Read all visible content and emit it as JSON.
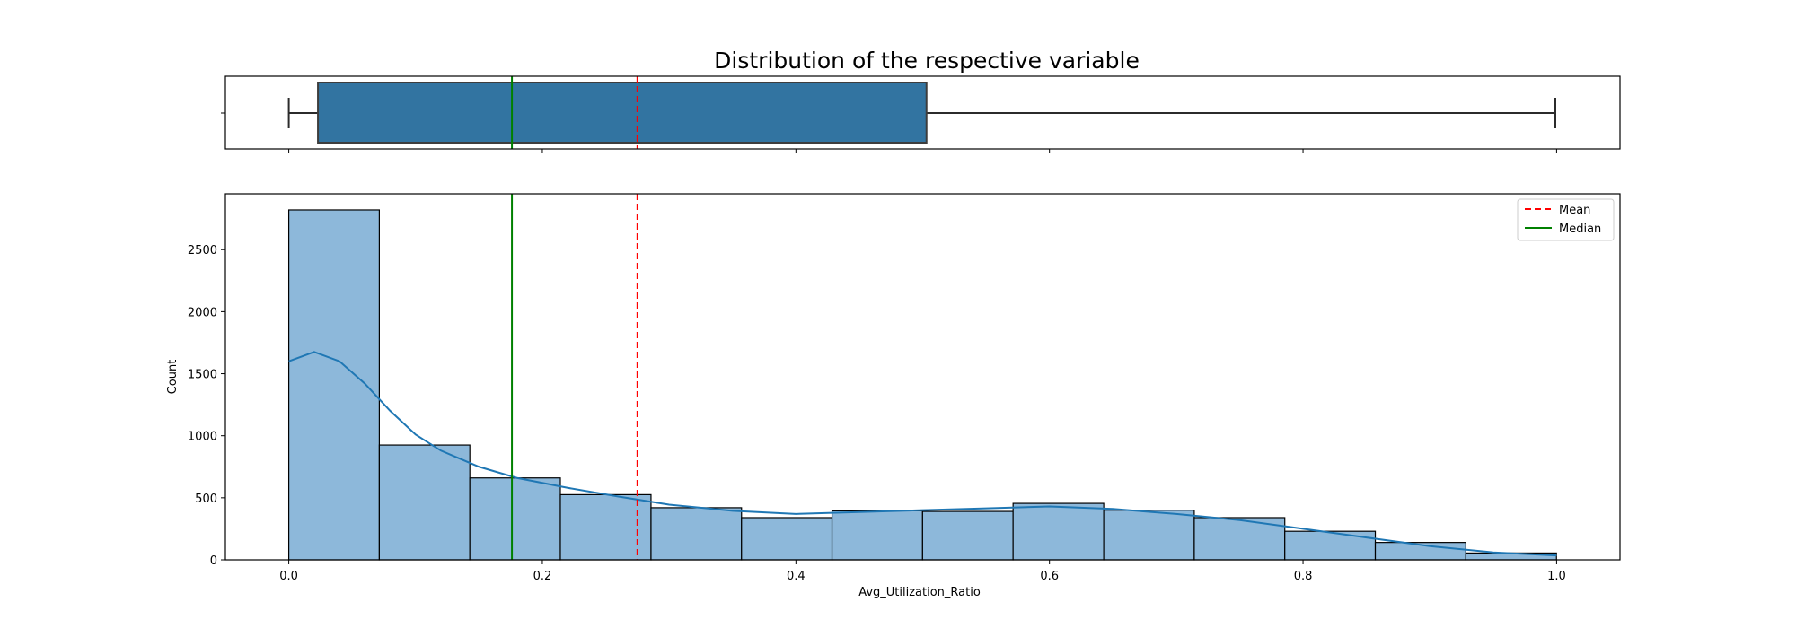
{
  "figure_title": "Distribution of the respective variable",
  "chart_data": [
    {
      "type": "box",
      "orientation": "horizontal",
      "whisker_low": 0.0,
      "q1": 0.023,
      "median": 0.176,
      "q3": 0.503,
      "whisker_high": 0.999,
      "mean": 0.275,
      "median_line": 0.176,
      "box_color": "#3274a1",
      "xlim": [
        -0.05,
        1.05
      ]
    },
    {
      "type": "histogram",
      "title": "",
      "xlabel": "Avg_Utilization_Ratio",
      "ylabel": "Count",
      "xlim": [
        -0.05,
        1.05
      ],
      "ylim": [
        0,
        2950
      ],
      "bin_edges": [
        0.0,
        0.0714,
        0.1428,
        0.2142,
        0.2857,
        0.3571,
        0.4285,
        0.4999,
        0.5713,
        0.6428,
        0.7142,
        0.7856,
        0.857,
        0.9284,
        0.9999
      ],
      "counts": [
        2820,
        925,
        660,
        525,
        420,
        340,
        395,
        390,
        455,
        400,
        340,
        230,
        140,
        55
      ],
      "x_ticks": [
        0.0,
        0.2,
        0.4,
        0.6,
        0.8,
        1.0
      ],
      "x_tick_labels": [
        "0.0",
        "0.2",
        "0.4",
        "0.6",
        "0.8",
        "1.0"
      ],
      "y_ticks": [
        0,
        500,
        1000,
        1500,
        2000,
        2500
      ],
      "y_tick_labels": [
        "0",
        "500",
        "1000",
        "1500",
        "2000",
        "2500"
      ],
      "kde": {
        "x": [
          0.0,
          0.02,
          0.04,
          0.06,
          0.08,
          0.1,
          0.12,
          0.15,
          0.18,
          0.22,
          0.26,
          0.3,
          0.35,
          0.4,
          0.45,
          0.5,
          0.55,
          0.6,
          0.65,
          0.7,
          0.75,
          0.8,
          0.85,
          0.9,
          0.95,
          1.0
        ],
        "y": [
          1600,
          1675,
          1600,
          1420,
          1200,
          1010,
          880,
          750,
          660,
          580,
          510,
          445,
          395,
          370,
          385,
          400,
          415,
          430,
          410,
          370,
          320,
          250,
          180,
          110,
          60,
          35
        ],
        "color": "#1f77b4"
      },
      "bar_color": "#8db8da",
      "mean": 0.275,
      "median": 0.176,
      "mean_color": "#ff0000",
      "median_color": "#008000",
      "legend": {
        "position": "top-right",
        "entries": [
          "Mean",
          "Median"
        ]
      }
    }
  ]
}
